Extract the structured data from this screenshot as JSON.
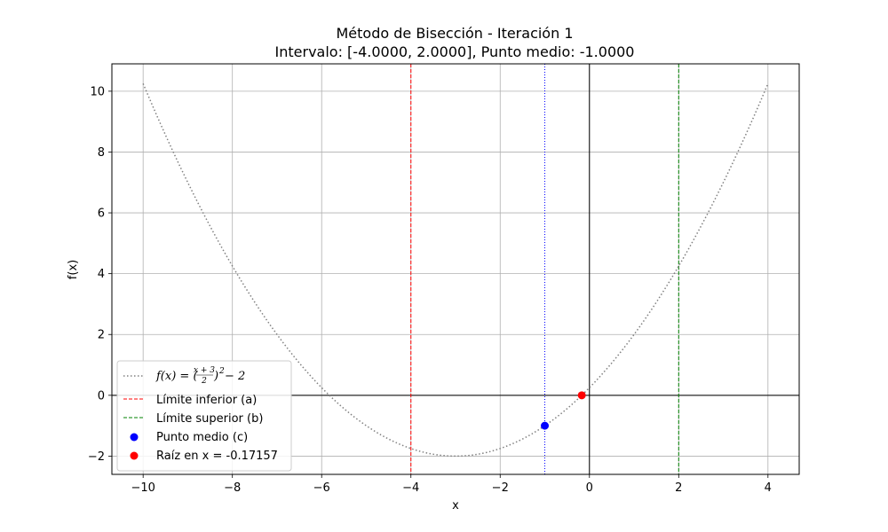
{
  "chart_data": {
    "type": "line",
    "title_line1": "Método de Bisección - Iteración 1",
    "title_line2": "Intervalo: [-4.0000, 2.0000], Punto medio: -1.0000",
    "xlabel": "x",
    "ylabel": "f(x)",
    "xlim": [
      -10.7,
      4.7
    ],
    "ylim": [
      -2.6,
      10.9
    ],
    "xticks": [
      -10,
      -8,
      -6,
      -4,
      -2,
      0,
      2,
      4
    ],
    "yticks": [
      -2,
      0,
      2,
      4,
      6,
      8,
      10
    ],
    "xtick_labels": [
      "−10",
      "−8",
      "−6",
      "−4",
      "−2",
      "0",
      "2",
      "4"
    ],
    "ytick_labels": [
      "−2",
      "0",
      "2",
      "4",
      "6",
      "8",
      "10"
    ],
    "grid": true,
    "function": {
      "expression": "f(x) = ((x+3)/2)^2 - 2",
      "x_range": [
        -10,
        4
      ],
      "color": "#808080",
      "style": "dotted"
    },
    "vlines": [
      {
        "x": -4,
        "color": "#ff0000",
        "style": "dashed",
        "label_key": "lower"
      },
      {
        "x": 2,
        "color": "#008000",
        "style": "dashed",
        "label_key": "upper"
      },
      {
        "x": -1,
        "color": "#0000ff",
        "style": "dotted",
        "label_key": ""
      }
    ],
    "points": [
      {
        "x": -1,
        "y": -1,
        "color": "#0000ff",
        "label_key": "mid"
      },
      {
        "x": -0.17157,
        "y": 0,
        "color": "#ff0000",
        "label_key": "root"
      }
    ],
    "zero_lines": {
      "color": "#000000"
    },
    "legend": {
      "placement": "lower-left",
      "function_label": {
        "lhs": "f(x) = (",
        "num": "x + 3",
        "den": "2",
        "rhs": ")",
        "power": "2",
        "tail": " − 2"
      },
      "lower": "Límite inferior (a)",
      "upper": "Límite superior (b)",
      "mid": "Punto medio (c)",
      "root": "Raíz en x = -0.17157"
    }
  }
}
